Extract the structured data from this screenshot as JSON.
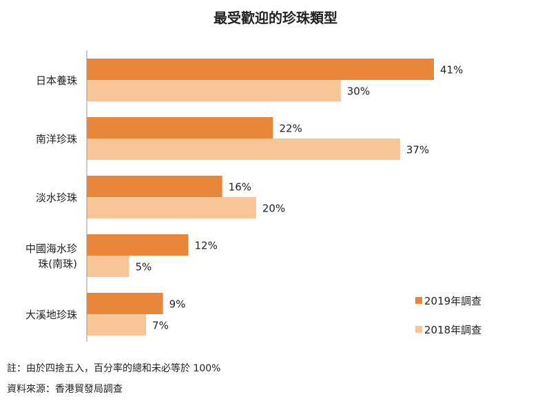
{
  "chart_data": {
    "type": "bar",
    "orientation": "horizontal",
    "title": "最受歡迎的珍珠類型",
    "categories": [
      "日本養珠",
      "南洋珍珠",
      "淡水珍珠",
      "中國海水珍珠(南珠)",
      "大溪地珍珠"
    ],
    "category_lines": [
      [
        "日本養珠"
      ],
      [
        "南洋珍珠"
      ],
      [
        "淡水珍珠"
      ],
      [
        "中國海水珍",
        "珠(南珠)"
      ],
      [
        "大溪地珍珠"
      ]
    ],
    "series": [
      {
        "name": "2019年調查",
        "values": [
          41,
          22,
          16,
          12,
          9
        ],
        "labels": [
          "41%",
          "22%",
          "16%",
          "12%",
          "9%"
        ],
        "color": "#E8873A"
      },
      {
        "name": "2018年調查",
        "values": [
          30,
          37,
          20,
          5,
          7
        ],
        "labels": [
          "30%",
          "37%",
          "20%",
          "5%",
          "7%"
        ],
        "color": "#F8C597"
      }
    ],
    "xlim": [
      0,
      41
    ],
    "grid": false,
    "legend": "bottom-right"
  },
  "notes": {
    "note": "註：由於四捨五入，百分率的總和未必等於 100%",
    "source": "資料來源：香港貿發局調查"
  }
}
